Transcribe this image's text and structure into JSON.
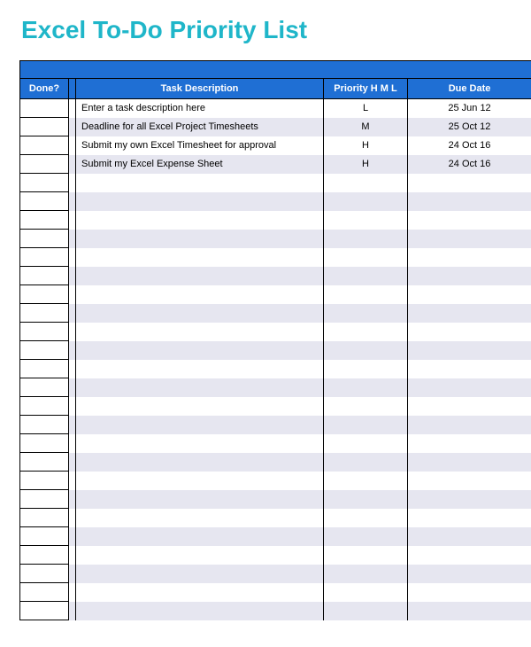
{
  "title": {
    "text": "Excel To-Do Priority List",
    "color": "#1fb6c9",
    "fontsize_pt": 28
  },
  "table": {
    "header_bg": "#1f6fd4",
    "header_text_color": "#ffffff",
    "stripe_a_bg": "#ffffff",
    "stripe_b_bg": "#e6e6f0",
    "border_color": "#000000",
    "columns": {
      "done": "Done?",
      "task": "Task Description",
      "priority": "Priority H M L",
      "date": "Due Date"
    },
    "rows": [
      {
        "done": "",
        "task": "Enter a task description here",
        "priority": "L",
        "date": "25 Jun 12"
      },
      {
        "done": "",
        "task": "Deadline for all Excel Project Timesheets",
        "priority": "M",
        "date": "25 Oct 12"
      },
      {
        "done": "",
        "task": "Submit my own Excel Timesheet for approval",
        "priority": "H",
        "date": "24 Oct 16"
      },
      {
        "done": "",
        "task": "Submit my Excel Expense Sheet",
        "priority": "H",
        "date": "24 Oct 16"
      },
      {
        "done": "",
        "task": "",
        "priority": "",
        "date": ""
      },
      {
        "done": "",
        "task": "",
        "priority": "",
        "date": ""
      },
      {
        "done": "",
        "task": "",
        "priority": "",
        "date": ""
      },
      {
        "done": "",
        "task": "",
        "priority": "",
        "date": ""
      },
      {
        "done": "",
        "task": "",
        "priority": "",
        "date": ""
      },
      {
        "done": "",
        "task": "",
        "priority": "",
        "date": ""
      },
      {
        "done": "",
        "task": "",
        "priority": "",
        "date": ""
      },
      {
        "done": "",
        "task": "",
        "priority": "",
        "date": ""
      },
      {
        "done": "",
        "task": "",
        "priority": "",
        "date": ""
      },
      {
        "done": "",
        "task": "",
        "priority": "",
        "date": ""
      },
      {
        "done": "",
        "task": "",
        "priority": "",
        "date": ""
      },
      {
        "done": "",
        "task": "",
        "priority": "",
        "date": ""
      },
      {
        "done": "",
        "task": "",
        "priority": "",
        "date": ""
      },
      {
        "done": "",
        "task": "",
        "priority": "",
        "date": ""
      },
      {
        "done": "",
        "task": "",
        "priority": "",
        "date": ""
      },
      {
        "done": "",
        "task": "",
        "priority": "",
        "date": ""
      },
      {
        "done": "",
        "task": "",
        "priority": "",
        "date": ""
      },
      {
        "done": "",
        "task": "",
        "priority": "",
        "date": ""
      },
      {
        "done": "",
        "task": "",
        "priority": "",
        "date": ""
      },
      {
        "done": "",
        "task": "",
        "priority": "",
        "date": ""
      },
      {
        "done": "",
        "task": "",
        "priority": "",
        "date": ""
      },
      {
        "done": "",
        "task": "",
        "priority": "",
        "date": ""
      },
      {
        "done": "",
        "task": "",
        "priority": "",
        "date": ""
      },
      {
        "done": "",
        "task": "",
        "priority": "",
        "date": ""
      }
    ]
  }
}
